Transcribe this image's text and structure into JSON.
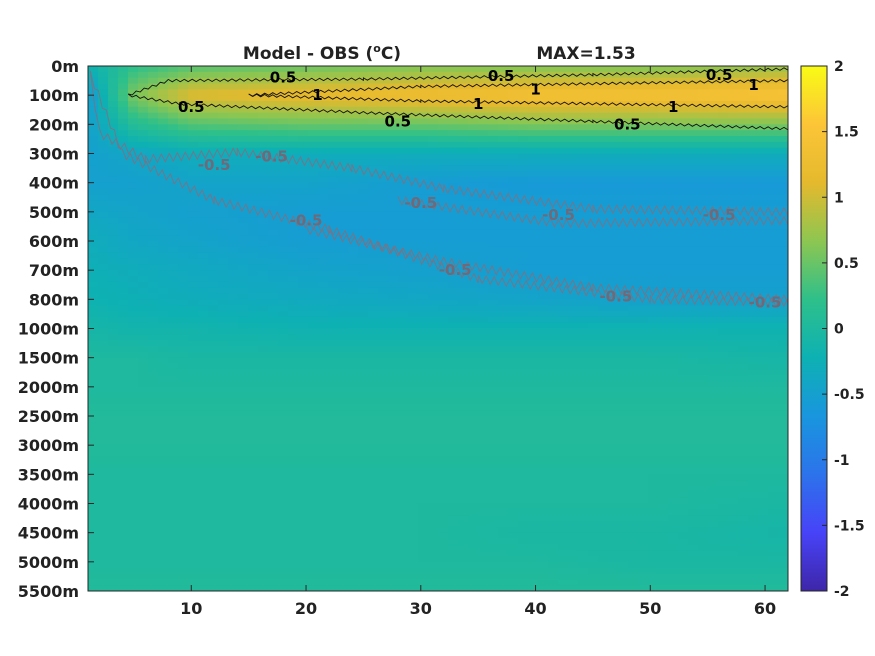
{
  "chart_data": {
    "type": "heatmap",
    "title_left": "Model - OBS (oC)",
    "title_left_main": "Model - OBS (",
    "title_left_sup": "o",
    "title_left_end": "C)",
    "title_right": "MAX=1.53",
    "xlabel": "",
    "ylabel": "",
    "x_ticks": [
      10,
      20,
      30,
      40,
      50,
      60
    ],
    "x_range": [
      1,
      62
    ],
    "y_tick_labels": [
      "0m",
      "100m",
      "200m",
      "300m",
      "400m",
      "500m",
      "600m",
      "700m",
      "800m",
      "1000m",
      "1500m",
      "2000m",
      "2500m",
      "3000m",
      "3500m",
      "4000m",
      "4500m",
      "5000m",
      "5500m"
    ],
    "colorbar": {
      "range": [
        -2,
        2
      ],
      "ticks": [
        "2",
        "1.5",
        "1",
        "0.5",
        "0",
        "-0.5",
        "-1",
        "-1.5",
        "-2"
      ],
      "colormap": "parula",
      "colors": [
        "#3e26a8",
        "#4743f8",
        "#2c73eb",
        "#1996de",
        "#0eb1b3",
        "#2ec08a",
        "#8dc651",
        "#e5b92d",
        "#fcc538",
        "#f9fb15"
      ]
    },
    "field": {
      "depth_levels": [
        "0m",
        "100m",
        "200m",
        "300m",
        "400m",
        "500m",
        "600m",
        "700m",
        "800m",
        "1000m",
        "1500m",
        "2000m",
        "2500m",
        "3000m",
        "3500m",
        "4000m",
        "4500m",
        "5000m",
        "5500m"
      ],
      "x": [
        1,
        5,
        10,
        20,
        30,
        40,
        50,
        62
      ],
      "values": [
        [
          -0.2,
          0.2,
          0.4,
          0.5,
          0.6,
          0.6,
          0.6,
          0.7
        ],
        [
          -0.6,
          0.6,
          1.1,
          1.2,
          1.3,
          1.4,
          1.4,
          1.5
        ],
        [
          -0.5,
          0.1,
          0.4,
          0.5,
          0.5,
          0.6,
          0.6,
          0.6
        ],
        [
          -0.5,
          -0.4,
          -0.3,
          -0.3,
          -0.3,
          -0.3,
          -0.3,
          -0.3
        ],
        [
          -0.5,
          -0.5,
          -0.45,
          -0.45,
          -0.55,
          -0.6,
          -0.6,
          -0.6
        ],
        [
          -0.4,
          -0.45,
          -0.5,
          -0.55,
          -0.55,
          -0.55,
          -0.55,
          -0.55
        ],
        [
          -0.3,
          -0.4,
          -0.45,
          -0.55,
          -0.55,
          -0.55,
          -0.55,
          -0.55
        ],
        [
          -0.25,
          -0.3,
          -0.35,
          -0.45,
          -0.5,
          -0.55,
          -0.55,
          -0.55
        ],
        [
          -0.2,
          -0.25,
          -0.3,
          -0.35,
          -0.4,
          -0.45,
          -0.5,
          -0.5
        ],
        [
          -0.1,
          -0.15,
          -0.15,
          -0.2,
          -0.2,
          -0.2,
          -0.2,
          -0.2
        ],
        [
          0.0,
          0.0,
          -0.05,
          -0.05,
          -0.05,
          -0.05,
          -0.05,
          -0.1
        ],
        [
          0.0,
          0.0,
          0.0,
          0.0,
          0.0,
          0.0,
          0.0,
          0.0
        ],
        [
          0.05,
          0.05,
          0.05,
          0.05,
          0.05,
          0.05,
          0.05,
          0.05
        ],
        [
          0.05,
          0.05,
          0.05,
          0.05,
          0.05,
          0.05,
          0.05,
          0.05
        ],
        [
          0.0,
          0.0,
          0.0,
          0.0,
          0.0,
          0.0,
          0.0,
          0.0
        ],
        [
          0.0,
          0.0,
          0.0,
          0.0,
          0.0,
          0.0,
          0.0,
          -0.05
        ],
        [
          0.0,
          0.0,
          0.0,
          0.0,
          0.0,
          -0.05,
          -0.05,
          -0.1
        ],
        [
          0.0,
          0.0,
          0.0,
          0.0,
          0.0,
          0.0,
          -0.05,
          -0.05
        ],
        [
          0.05,
          0.05,
          0.05,
          0.05,
          0.05,
          0.05,
          0.05,
          0.05
        ]
      ]
    },
    "contour_labels": [
      {
        "text": "0.5",
        "x": 18,
        "level": "100m",
        "offset": -0.6,
        "color": "#000000"
      },
      {
        "text": "1",
        "x": 21,
        "level": "100m",
        "offset": 0.0,
        "color": "#000000"
      },
      {
        "text": "0.5",
        "x": 10,
        "level": "100m",
        "offset": 0.4,
        "color": "#000000"
      },
      {
        "text": "0.5",
        "x": 37,
        "level": "100m",
        "offset": -0.65,
        "color": "#000000"
      },
      {
        "text": "1",
        "x": 40,
        "level": "100m",
        "offset": -0.2,
        "color": "#000000"
      },
      {
        "text": "1",
        "x": 35,
        "level": "100m",
        "offset": 0.3,
        "color": "#000000"
      },
      {
        "text": "0.5",
        "x": 28,
        "level": "200m",
        "offset": -0.1,
        "color": "#000000"
      },
      {
        "text": "0.5",
        "x": 56,
        "level": "100m",
        "offset": -0.7,
        "color": "#000000"
      },
      {
        "text": "1",
        "x": 59,
        "level": "100m",
        "offset": -0.35,
        "color": "#000000"
      },
      {
        "text": "1",
        "x": 52,
        "level": "100m",
        "offset": 0.4,
        "color": "#000000"
      },
      {
        "text": "0.5",
        "x": 48,
        "level": "200m",
        "offset": 0.0,
        "color": "#000000"
      },
      {
        "text": "-0.5",
        "x": 12,
        "level": "300m",
        "offset": 0.4,
        "color": "#6f6a7a"
      },
      {
        "text": "-0.5",
        "x": 17,
        "level": "300m",
        "offset": 0.1,
        "color": "#6f6a7a"
      },
      {
        "text": "-0.5",
        "x": 30,
        "level": "400m",
        "offset": 0.7,
        "color": "#6f6a7a"
      },
      {
        "text": "-0.5",
        "x": 42,
        "level": "500m",
        "offset": 0.1,
        "color": "#6f6a7a"
      },
      {
        "text": "-0.5",
        "x": 56,
        "level": "500m",
        "offset": 0.1,
        "color": "#6f6a7a"
      },
      {
        "text": "-0.5",
        "x": 20,
        "level": "500m",
        "offset": 0.3,
        "color": "#6f6a7a"
      },
      {
        "text": "-0.5",
        "x": 33,
        "level": "700m",
        "offset": 0.0,
        "color": "#6f6a7a"
      },
      {
        "text": "-0.5",
        "x": 47,
        "level": "800m",
        "offset": -0.1,
        "color": "#6f6a7a"
      },
      {
        "text": "-0.5",
        "x": 60,
        "level": "800m",
        "offset": 0.1,
        "color": "#6f6a7a"
      }
    ]
  }
}
